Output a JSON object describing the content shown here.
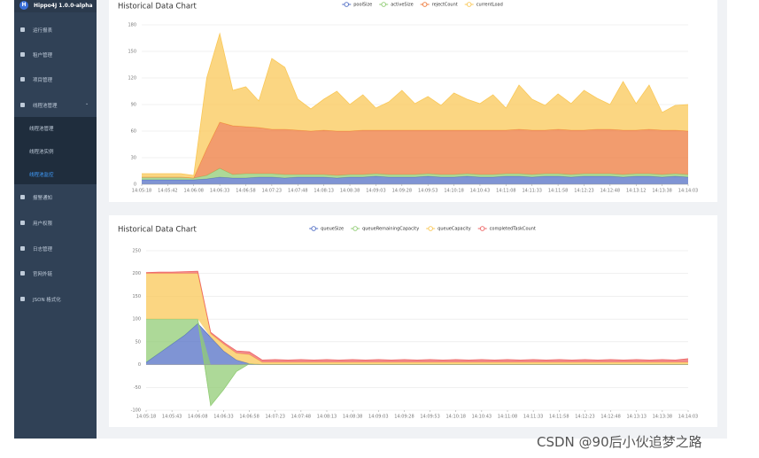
{
  "sidebar": {
    "brand": "Hippo4J 1.0.0-alpha",
    "items": [
      "运行报表",
      "租户管理",
      "项目管理",
      "线程池管理",
      "报警通知",
      "用户权限",
      "日志管理",
      "官网外链",
      "JSON 格式化"
    ],
    "submenu": [
      "线程池管理",
      "线程池实例",
      "线程池监控"
    ]
  },
  "chart_data": [
    {
      "type": "area",
      "title": "Historical Data Chart",
      "stacked": true,
      "grid": true,
      "categories": [
        "14:05:18",
        null,
        "14:05:42",
        null,
        "14:06:08",
        null,
        "14:06:33",
        null,
        "14:06:58",
        null,
        "14:07:23",
        null,
        "14:07:48",
        null,
        "14:08:13",
        null,
        "14:08:38",
        null,
        "14:09:03",
        null,
        "14:09:28",
        null,
        "14:09:53",
        null,
        "14:10:18",
        null,
        "14:10:43",
        null,
        "14:11:08",
        null,
        "14:11:33",
        null,
        "14:11:58",
        null,
        "14:12:23",
        null,
        "14:12:48",
        null,
        "14:13:12",
        null,
        "14:13:38",
        null,
        "14:14:03"
      ],
      "series": [
        {
          "name": "poolSize",
          "color": "#5470c6",
          "values": [
            5,
            5,
            5,
            5,
            5,
            6,
            8,
            7,
            7,
            8,
            8,
            7,
            8,
            8,
            8,
            7,
            8,
            8,
            9,
            8,
            8,
            8,
            9,
            8,
            8,
            9,
            8,
            8,
            9,
            9,
            8,
            9,
            9,
            8,
            9,
            9,
            9,
            8,
            9,
            9,
            8,
            9,
            8
          ]
        },
        {
          "name": "activeSize",
          "color": "#91cc75",
          "values": [
            3,
            3,
            3,
            3,
            2,
            4,
            10,
            4,
            5,
            4,
            4,
            4,
            3,
            3,
            3,
            3,
            3,
            3,
            3,
            3,
            3,
            3,
            3,
            3,
            3,
            3,
            3,
            3,
            3,
            3,
            3,
            3,
            3,
            3,
            3,
            3,
            3,
            3,
            3,
            3,
            3,
            3,
            3
          ]
        },
        {
          "name": "rejectCount",
          "color": "#ee7b3d",
          "values": [
            0,
            0,
            0,
            0,
            0,
            30,
            52,
            55,
            53,
            52,
            50,
            51,
            50,
            49,
            50,
            50,
            49,
            50,
            49,
            50,
            50,
            50,
            49,
            50,
            50,
            49,
            50,
            50,
            49,
            50,
            50,
            49,
            50,
            50,
            49,
            50,
            50,
            50,
            49,
            50,
            50,
            49,
            49
          ]
        },
        {
          "name": "currentLoad",
          "color": "#fac858",
          "values": [
            4,
            4,
            4,
            4,
            3,
            80,
            100,
            40,
            45,
            30,
            80,
            70,
            35,
            25,
            35,
            45,
            30,
            40,
            25,
            32,
            45,
            30,
            38,
            28,
            42,
            35,
            30,
            40,
            25,
            50,
            35,
            28,
            40,
            30,
            45,
            35,
            28,
            55,
            30,
            50,
            20,
            28,
            30
          ]
        }
      ],
      "ylim": [
        0,
        180
      ],
      "yticks": [
        0,
        30,
        60,
        90,
        120,
        150,
        180
      ]
    },
    {
      "type": "area",
      "title": "Historical Data Chart",
      "stacked": true,
      "grid": true,
      "categories": [
        "14:05:18",
        null,
        "14:05:43",
        null,
        "14:06:08",
        null,
        "14:06:33",
        null,
        "14:06:58",
        null,
        "14:07:23",
        null,
        "14:07:48",
        null,
        "14:08:13",
        null,
        "14:08:38",
        null,
        "14:09:03",
        null,
        "14:09:28",
        null,
        "14:09:53",
        null,
        "14:10:18",
        null,
        "14:10:43",
        null,
        "14:11:08",
        null,
        "14:11:33",
        null,
        "14:11:58",
        null,
        "14:12:23",
        null,
        "14:12:48",
        null,
        "14:13:13",
        null,
        "14:13:38",
        null,
        "14:14:03"
      ],
      "series": [
        {
          "name": "queueSize",
          "color": "#5470c6",
          "values": [
            5,
            25,
            45,
            65,
            90,
            60,
            30,
            10,
            2,
            0,
            0,
            0,
            0,
            0,
            0,
            0,
            0,
            0,
            0,
            0,
            0,
            0,
            0,
            0,
            0,
            0,
            0,
            0,
            0,
            0,
            0,
            0,
            0,
            0,
            0,
            0,
            0,
            0,
            0,
            0,
            0,
            0,
            0
          ]
        },
        {
          "name": "queueRemainingCapacity",
          "color": "#91cc75",
          "values": [
            95,
            75,
            55,
            35,
            10,
            -90,
            -55,
            -15,
            0,
            0,
            0,
            0,
            0,
            0,
            0,
            0,
            0,
            0,
            0,
            0,
            0,
            0,
            0,
            0,
            0,
            0,
            0,
            0,
            0,
            0,
            0,
            0,
            0,
            0,
            0,
            0,
            0,
            0,
            0,
            0,
            0,
            0,
            0
          ]
        },
        {
          "name": "queueCapacity",
          "color": "#fac858",
          "values": [
            100,
            100,
            100,
            100,
            100,
            8,
            15,
            15,
            20,
            5,
            5,
            5,
            5,
            5,
            5,
            5,
            5,
            5,
            5,
            5,
            5,
            5,
            5,
            5,
            5,
            5,
            5,
            5,
            5,
            5,
            5,
            5,
            5,
            5,
            5,
            5,
            5,
            5,
            5,
            5,
            5,
            5,
            5
          ]
        },
        {
          "name": "completedTaskCount",
          "color": "#ee6666",
          "values": [
            2,
            3,
            3,
            4,
            5,
            3,
            4,
            5,
            6,
            5,
            6,
            5,
            6,
            5,
            6,
            5,
            6,
            5,
            6,
            5,
            6,
            5,
            6,
            5,
            6,
            5,
            6,
            5,
            6,
            5,
            6,
            5,
            6,
            5,
            6,
            5,
            6,
            5,
            6,
            5,
            6,
            5,
            8
          ]
        }
      ],
      "ylim": [
        -100,
        250
      ],
      "yticks": [
        -100,
        -50,
        0,
        50,
        100,
        150,
        200,
        250
      ]
    }
  ],
  "watermark": "CSDN @90后小伙追梦之路"
}
